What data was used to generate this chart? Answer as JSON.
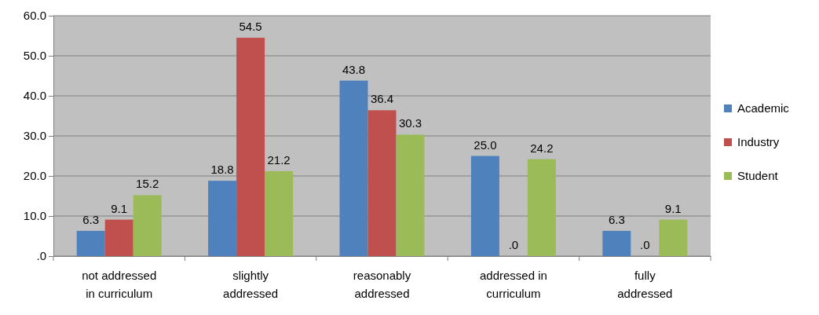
{
  "chart_data": {
    "type": "bar",
    "categories": [
      "not addressed in curriculum",
      "slightly addressed",
      "reasonably addressed",
      "addressed in curriculum",
      "fully addressed"
    ],
    "series": [
      {
        "name": "Academic",
        "color": "#4f81bd",
        "values": [
          6.3,
          18.8,
          43.8,
          25.0,
          6.3
        ],
        "value_labels": [
          "6.3",
          "18.8",
          "43.8",
          "25.0",
          "6.3"
        ]
      },
      {
        "name": "Industry",
        "color": "#c0504d",
        "values": [
          9.1,
          54.5,
          36.4,
          0,
          0
        ],
        "value_labels": [
          "9.1",
          "54.5",
          "36.4",
          ".0",
          ".0"
        ]
      },
      {
        "name": "Student",
        "color": "#9bbb59",
        "values": [
          15.2,
          21.2,
          30.3,
          24.2,
          9.1
        ],
        "value_labels": [
          "15.2",
          "21.2",
          "30.3",
          "24.2",
          "9.1"
        ]
      }
    ],
    "ylim": [
      0,
      60
    ],
    "yticks": [
      {
        "value": 0,
        "label": ".0"
      },
      {
        "value": 10,
        "label": "10.0"
      },
      {
        "value": 20,
        "label": "20.0"
      },
      {
        "value": 30,
        "label": "30.0"
      },
      {
        "value": 40,
        "label": "40.0"
      },
      {
        "value": 50,
        "label": "50.0"
      },
      {
        "value": 60,
        "label": "60.0"
      }
    ],
    "grid": "y",
    "legend": "right"
  }
}
